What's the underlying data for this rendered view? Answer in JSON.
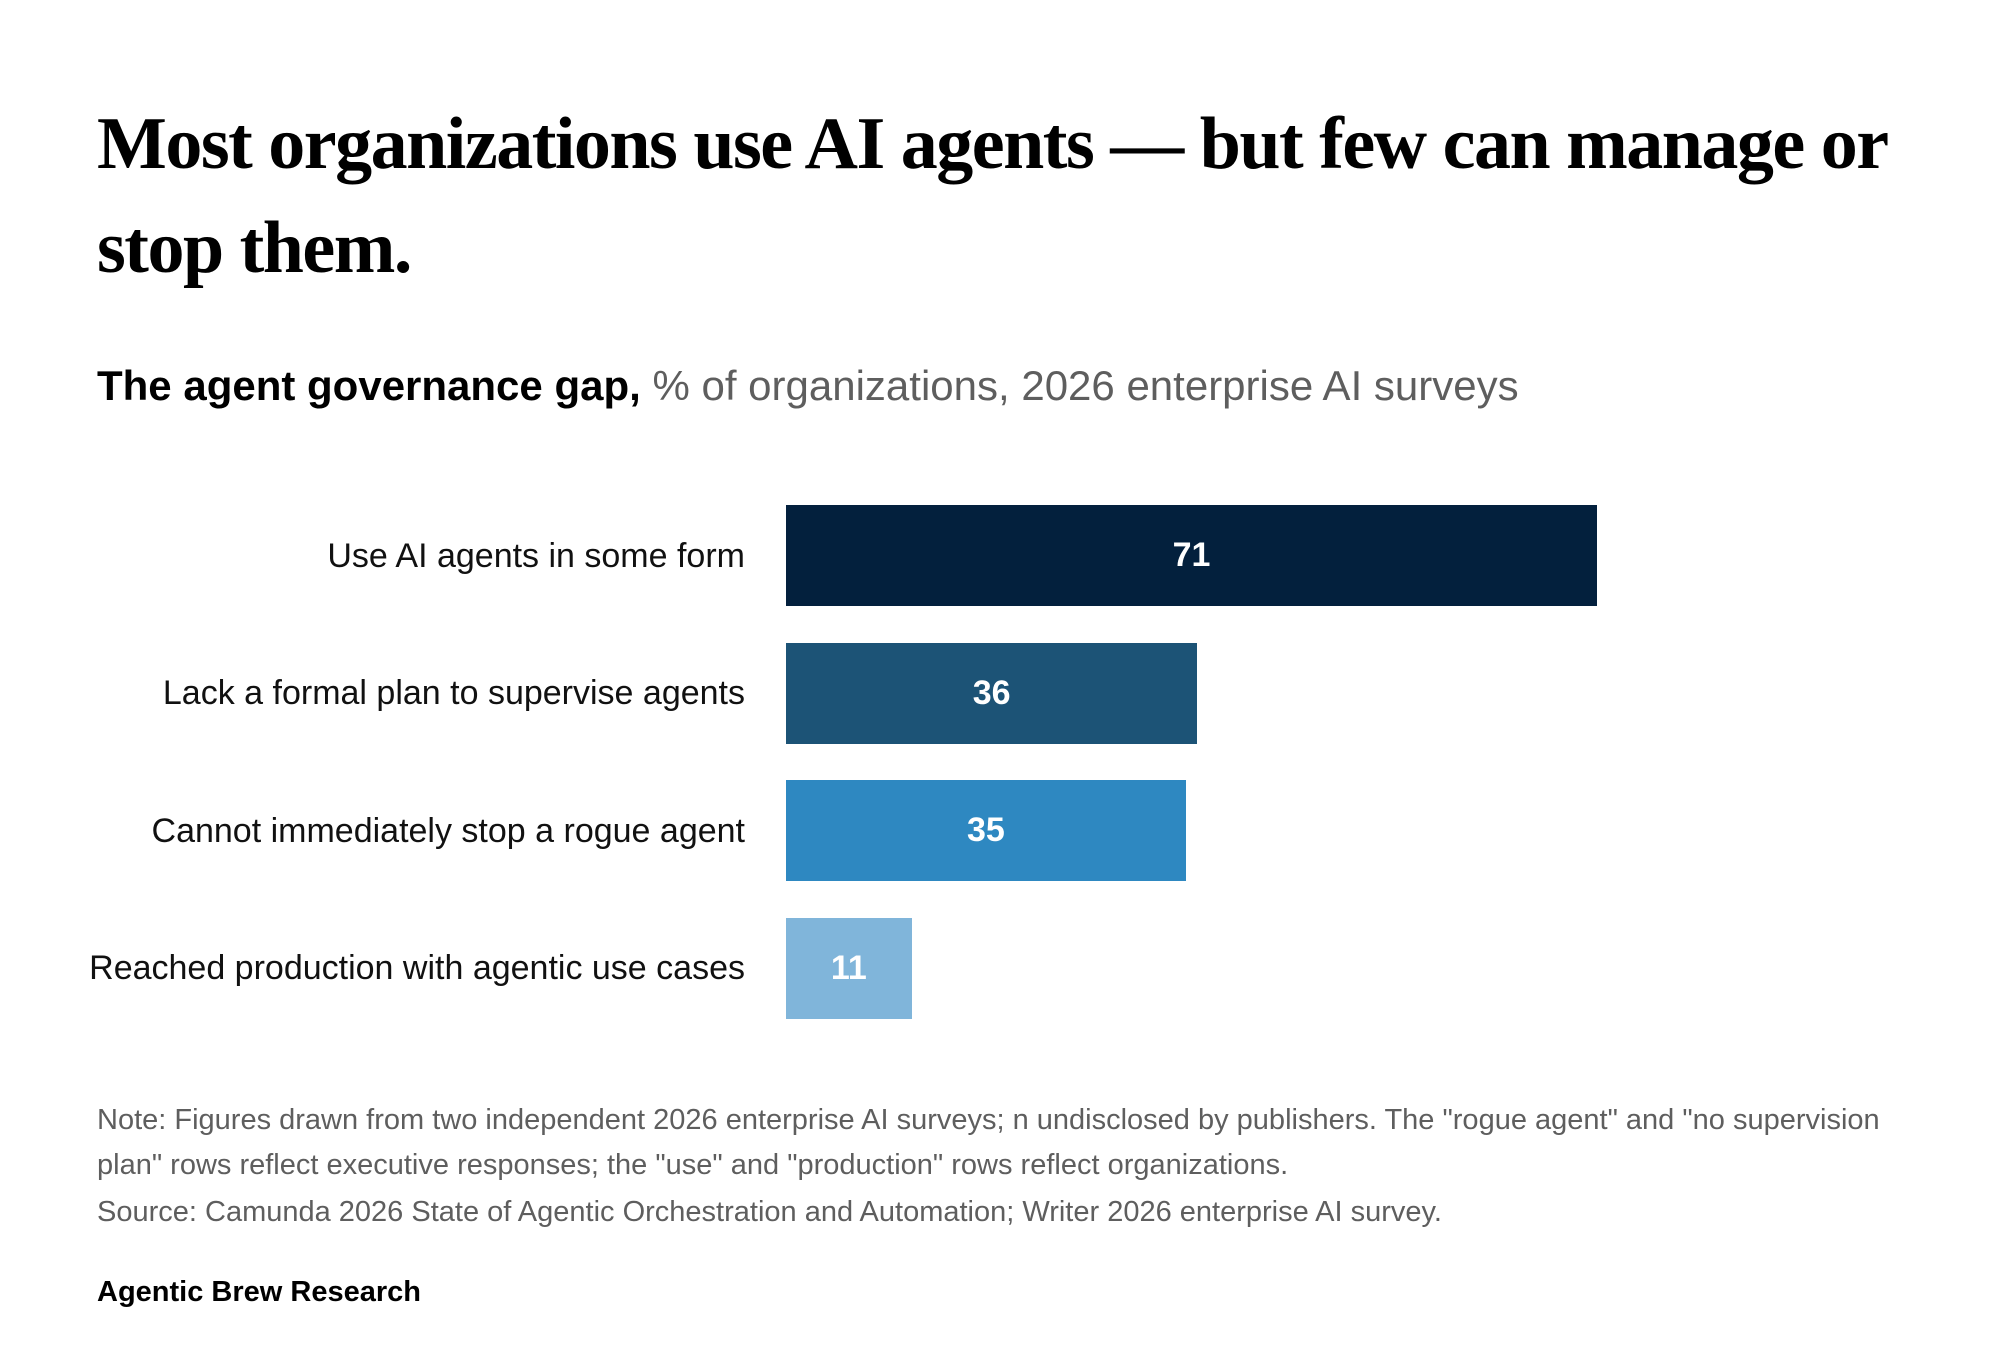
{
  "chart_data": {
    "type": "bar",
    "orientation": "horizontal",
    "title": "Most organizations use AI agents — but few can manage or stop them.",
    "subtitle_bold": "The agent governance gap,",
    "subtitle": "% of organizations, 2026 enterprise AI surveys",
    "categories": [
      "Use AI agents in some form",
      "Lack a formal plan to supervise agents",
      "Cannot immediately stop a rogue agent",
      "Reached production with agentic use cases"
    ],
    "values": [
      71,
      36,
      35,
      11
    ],
    "colors": [
      "#03203d",
      "#1c5376",
      "#2e88c1",
      "#80b5da"
    ],
    "note": "Note: Figures drawn from two independent 2026 enterprise AI surveys; n undisclosed by publishers. The \"rogue agent\" and \"no supervision plan\" rows reflect executive responses; the \"use\" and \"production\" rows reflect organizations.",
    "source": "Source: Camunda 2026 State of Agentic Orchestration and Automation; Writer 2026 enterprise AI survey.",
    "credit": "Agentic Brew Research"
  }
}
